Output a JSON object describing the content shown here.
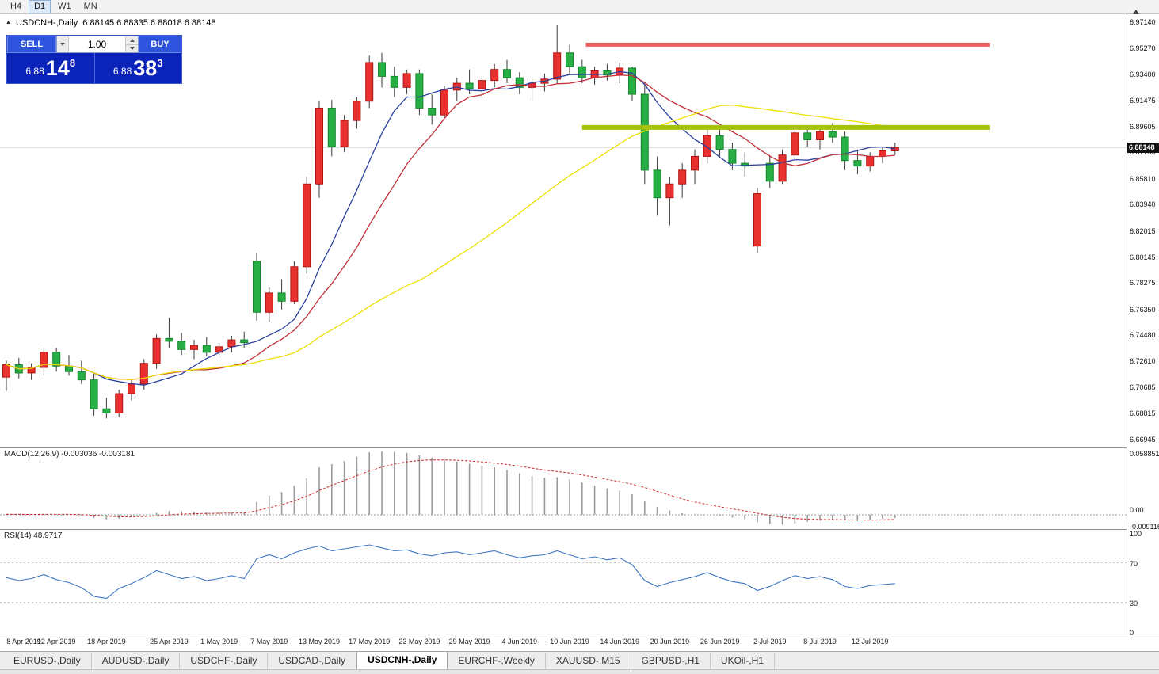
{
  "toolbar": {
    "timeframes": [
      "H4",
      "D1",
      "W1",
      "MN"
    ],
    "active_timeframe": "D1"
  },
  "chart": {
    "collapse_icon": "▲",
    "title": "USDCNH-,Daily",
    "ohlc": "6.88145 6.88335 6.88018 6.88148"
  },
  "trade_panel": {
    "sell_label": "SELL",
    "buy_label": "BUY",
    "volume": "1.00",
    "sell_price_prefix": "6.88",
    "sell_price_main": "14",
    "sell_price_sup": "8",
    "buy_price_prefix": "6.88",
    "buy_price_main": "38",
    "buy_price_sup": "3"
  },
  "price_axis": {
    "labels": [
      "6.97140",
      "6.95270",
      "6.93400",
      "6.91475",
      "6.89605",
      "6.87735",
      "6.85810",
      "6.83940",
      "6.82015",
      "6.80145",
      "6.78275",
      "6.76350",
      "6.74480",
      "6.72610",
      "6.70685",
      "6.68815",
      "6.66945"
    ],
    "current_price_label": "6.88148"
  },
  "indicators": {
    "macd": {
      "label": "MACD(12,26,9) -0.003036 -0.003181",
      "axis_labels": [
        "0.058851",
        "0.00",
        "-0.009116"
      ]
    },
    "rsi": {
      "label": "RSI(14) 48.9717",
      "axis_labels": [
        "100",
        "70",
        "30",
        "0"
      ]
    }
  },
  "tabs": {
    "items": [
      "EURUSD-,Daily",
      "AUDUSD-,Daily",
      "USDCHF-,Daily",
      "USDCAD-,Daily",
      "USDCNH-,Daily",
      "EURCHF-,Weekly",
      "XAUUSD-,M15",
      "GBPUSD-,H1",
      "UKOil-,H1"
    ],
    "active": "USDCNH-,Daily"
  },
  "chart_data": {
    "type": "candlestick",
    "symbol": "USDCNH-",
    "timeframe": "Daily",
    "ohlc_display": {
      "open": 6.88145,
      "high": 6.88335,
      "low": 6.88018,
      "close": 6.88148
    },
    "current_price": 6.88148,
    "price_range": [
      6.664,
      6.978
    ],
    "colors": {
      "bull": "#E8312F",
      "bull_border": "#AD1412",
      "bear": "#27AE45",
      "bear_border": "#14862E",
      "wick": "#3A3A3A",
      "resistance_line": "#ED5E5E",
      "support_line": "#A3C00C",
      "current_price_line": "#C8C8C8",
      "macd_histogram": "#9A9A9A",
      "macd_signal": "#CC2A2A",
      "rsi_line": "#3E76C4"
    },
    "candles": [
      [
        6.715,
        6.727,
        6.705,
        6.724
      ],
      [
        6.724,
        6.729,
        6.714,
        6.718
      ],
      [
        6.718,
        6.725,
        6.713,
        6.722
      ],
      [
        6.722,
        6.736,
        6.716,
        6.733
      ],
      [
        6.733,
        6.736,
        6.719,
        6.723
      ],
      [
        6.723,
        6.731,
        6.716,
        6.719
      ],
      [
        6.719,
        6.727,
        6.71,
        6.713
      ],
      [
        6.713,
        6.718,
        6.687,
        6.692
      ],
      [
        6.692,
        6.7,
        6.685,
        6.689
      ],
      [
        6.689,
        6.706,
        6.686,
        6.703
      ],
      [
        6.703,
        6.713,
        6.698,
        6.71
      ],
      [
        6.71,
        6.728,
        6.706,
        6.725
      ],
      [
        6.725,
        6.746,
        6.721,
        6.743
      ],
      [
        6.743,
        6.758,
        6.736,
        6.741
      ],
      [
        6.741,
        6.747,
        6.731,
        6.735
      ],
      [
        6.735,
        6.742,
        6.728,
        6.738
      ],
      [
        6.738,
        6.744,
        6.73,
        6.733
      ],
      [
        6.733,
        6.74,
        6.729,
        6.737
      ],
      [
        6.737,
        6.745,
        6.733,
        6.742
      ],
      [
        6.742,
        6.748,
        6.736,
        6.74
      ],
      [
        6.799,
        6.805,
        6.756,
        6.762
      ],
      [
        6.762,
        6.78,
        6.755,
        6.776
      ],
      [
        6.776,
        6.786,
        6.764,
        6.77
      ],
      [
        6.77,
        6.799,
        6.768,
        6.795
      ],
      [
        6.795,
        6.86,
        6.79,
        6.855
      ],
      [
        6.855,
        6.915,
        6.845,
        6.91
      ],
      [
        6.91,
        6.916,
        6.875,
        6.882
      ],
      [
        6.882,
        6.905,
        6.878,
        6.901
      ],
      [
        6.901,
        6.918,
        6.895,
        6.915
      ],
      [
        6.915,
        6.948,
        6.91,
        6.943
      ],
      [
        6.943,
        6.95,
        6.925,
        6.933
      ],
      [
        6.933,
        6.94,
        6.918,
        6.925
      ],
      [
        6.925,
        6.938,
        6.92,
        6.935
      ],
      [
        6.935,
        6.938,
        6.905,
        6.91
      ],
      [
        6.91,
        6.92,
        6.898,
        6.905
      ],
      [
        6.905,
        6.926,
        6.902,
        6.923
      ],
      [
        6.923,
        6.932,
        6.915,
        6.928
      ],
      [
        6.928,
        6.938,
        6.92,
        6.924
      ],
      [
        6.924,
        6.933,
        6.917,
        6.93
      ],
      [
        6.93,
        6.942,
        6.925,
        6.938
      ],
      [
        6.938,
        6.945,
        6.928,
        6.932
      ],
      [
        6.932,
        6.936,
        6.92,
        6.925
      ],
      [
        6.925,
        6.932,
        6.915,
        6.928
      ],
      [
        6.928,
        6.935,
        6.922,
        6.931
      ],
      [
        6.931,
        6.97,
        6.928,
        6.95
      ],
      [
        6.95,
        6.956,
        6.935,
        6.94
      ],
      [
        6.94,
        6.945,
        6.928,
        6.932
      ],
      [
        6.932,
        6.94,
        6.927,
        6.937
      ],
      [
        6.937,
        6.942,
        6.93,
        6.934
      ],
      [
        6.934,
        6.943,
        6.928,
        6.939
      ],
      [
        6.939,
        6.94,
        6.915,
        6.92
      ],
      [
        6.92,
        6.928,
        6.855,
        6.865
      ],
      [
        6.865,
        6.875,
        6.832,
        6.845
      ],
      [
        6.845,
        6.86,
        6.825,
        6.855
      ],
      [
        6.855,
        6.87,
        6.845,
        6.865
      ],
      [
        6.865,
        6.88,
        6.855,
        6.875
      ],
      [
        6.875,
        6.895,
        6.87,
        6.89
      ],
      [
        6.89,
        6.898,
        6.875,
        6.88
      ],
      [
        6.88,
        6.885,
        6.865,
        6.87
      ],
      [
        6.87,
        6.878,
        6.86,
        6.868
      ],
      [
        6.81,
        6.852,
        6.805,
        6.848
      ],
      [
        6.87,
        6.876,
        6.852,
        6.857
      ],
      [
        6.857,
        6.88,
        6.855,
        6.876
      ],
      [
        6.876,
        6.895,
        6.872,
        6.892
      ],
      [
        6.892,
        6.897,
        6.882,
        6.887
      ],
      [
        6.887,
        6.896,
        6.88,
        6.893
      ],
      [
        6.893,
        6.899,
        6.885,
        6.889
      ],
      [
        6.889,
        6.893,
        6.865,
        6.872
      ],
      [
        6.872,
        6.88,
        6.862,
        6.868
      ],
      [
        6.868,
        6.878,
        6.864,
        6.875
      ],
      [
        6.875,
        6.882,
        6.87,
        6.879
      ],
      [
        6.879,
        6.885,
        6.876,
        6.88148
      ]
    ],
    "date_labels": [
      {
        "index": 0,
        "text": "8 Apr 2019"
      },
      {
        "index": 4,
        "text": "12 Apr 2019"
      },
      {
        "index": 8,
        "text": "18 Apr 2019"
      },
      {
        "index": 13,
        "text": "25 Apr 2019"
      },
      {
        "index": 17,
        "text": "1 May 2019"
      },
      {
        "index": 21,
        "text": "7 May 2019"
      },
      {
        "index": 25,
        "text": "13 May 2019"
      },
      {
        "index": 29,
        "text": "17 May 2019"
      },
      {
        "index": 33,
        "text": "23 May 2019"
      },
      {
        "index": 37,
        "text": "29 May 2019"
      },
      {
        "index": 41,
        "text": "4 Jun 2019"
      },
      {
        "index": 45,
        "text": "10 Jun 2019"
      },
      {
        "index": 49,
        "text": "14 Jun 2019"
      },
      {
        "index": 53,
        "text": "20 Jun 2019"
      },
      {
        "index": 57,
        "text": "26 Jun 2019"
      },
      {
        "index": 61,
        "text": "2 Jul 2019"
      },
      {
        "index": 65,
        "text": "8 Jul 2019"
      },
      {
        "index": 69,
        "text": "12 Jul 2019"
      }
    ],
    "moving_averages": [
      {
        "period": 8,
        "color": "#2B3F9E"
      },
      {
        "period": 13,
        "color": "#C03038"
      },
      {
        "period": 34,
        "color": "#EDDF00"
      }
    ],
    "hlines": [
      {
        "price": 6.956,
        "from_index": 46.3,
        "to_index": 78.6,
        "thickness": 5,
        "color_key": "resistance_line"
      },
      {
        "price": 6.896,
        "from_index": 46.0,
        "to_index": 78.6,
        "thickness": 6,
        "color_key": "support_line"
      }
    ],
    "macd": {
      "params": "12,26,9",
      "value": -0.003036,
      "signal_value": -0.003181,
      "range_max": 0.058851,
      "range_min": -0.009116,
      "histogram": [
        0.0005,
        0.0002,
        0.0,
        0.0008,
        0.0006,
        0.0002,
        -0.0008,
        -0.003,
        -0.0042,
        -0.0035,
        -0.0022,
        -0.0005,
        0.0018,
        0.0035,
        0.0032,
        0.0028,
        0.0022,
        0.002,
        0.0022,
        0.002,
        0.012,
        0.018,
        0.021,
        0.027,
        0.034,
        0.044,
        0.047,
        0.05,
        0.054,
        0.058,
        0.0589,
        0.0585,
        0.0575,
        0.0555,
        0.053,
        0.051,
        0.0495,
        0.0475,
        0.0455,
        0.044,
        0.0415,
        0.0385,
        0.036,
        0.0345,
        0.035,
        0.033,
        0.03,
        0.027,
        0.0245,
        0.0225,
        0.019,
        0.013,
        0.0075,
        0.004,
        0.0015,
        0.0005,
        0.0,
        -0.001,
        -0.0025,
        -0.004,
        -0.007,
        -0.0085,
        -0.0091,
        -0.008,
        -0.0065,
        -0.0055,
        -0.0048,
        -0.0052,
        -0.0058,
        -0.005,
        -0.0038,
        -0.003
      ]
    },
    "rsi": {
      "period": 14,
      "value": 48.9717,
      "levels": [
        70,
        30
      ],
      "values": [
        55,
        52,
        54,
        58,
        53,
        50,
        45,
        36,
        34,
        44,
        49,
        55,
        62,
        58,
        54,
        56,
        52,
        54,
        57,
        54,
        74,
        78,
        74,
        80,
        84,
        87,
        82,
        84,
        86,
        88,
        85,
        82,
        83,
        79,
        77,
        80,
        81,
        78,
        80,
        82,
        78,
        75,
        77,
        78,
        82,
        78,
        74,
        76,
        73,
        75,
        68,
        52,
        46,
        50,
        53,
        56,
        60,
        55,
        51,
        49,
        42,
        46,
        52,
        57,
        54,
        56,
        53,
        46,
        44,
        47,
        48,
        48.97
      ]
    }
  }
}
